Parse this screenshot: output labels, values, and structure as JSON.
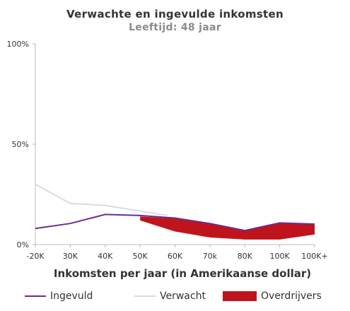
{
  "chart_data": {
    "type": "line",
    "title": "Verwachte en ingevulde inkomsten",
    "subtitle": "Leeftijd: 48 jaar",
    "xlabel": "Inkomsten per jaar (in Amerikaanse dollar)",
    "ylabel": "",
    "categories": [
      "-20K",
      "30K",
      "40K",
      "50K",
      "60K",
      "70k",
      "80K",
      "100K",
      "100K+"
    ],
    "y_ticks": [
      "0%",
      "50%",
      "100%"
    ],
    "ylim": [
      0,
      100
    ],
    "grid": false,
    "legend_position": "bottom",
    "series": [
      {
        "name": "Ingevuld",
        "color": "#6b2d8f",
        "values": [
          8,
          10.5,
          15,
          14.5,
          13.2,
          10.5,
          7,
          10.8,
          10.2
        ]
      },
      {
        "name": "Verwacht",
        "color": "#d7dbe6",
        "values": [
          30,
          20.5,
          19.5,
          null,
          null,
          null,
          null,
          null,
          null
        ]
      },
      {
        "name": "Overdrijvers",
        "color": "#c0141c",
        "values": [
          null,
          null,
          null,
          14,
          13,
          10.3,
          6.8,
          10.7,
          10
        ],
        "lower": [
          null,
          null,
          null,
          12,
          6.5,
          3.5,
          2.5,
          2.5,
          5
        ]
      }
    ],
    "verwacht_tail": {
      "x": 47.3,
      "y": 14.5
    }
  }
}
